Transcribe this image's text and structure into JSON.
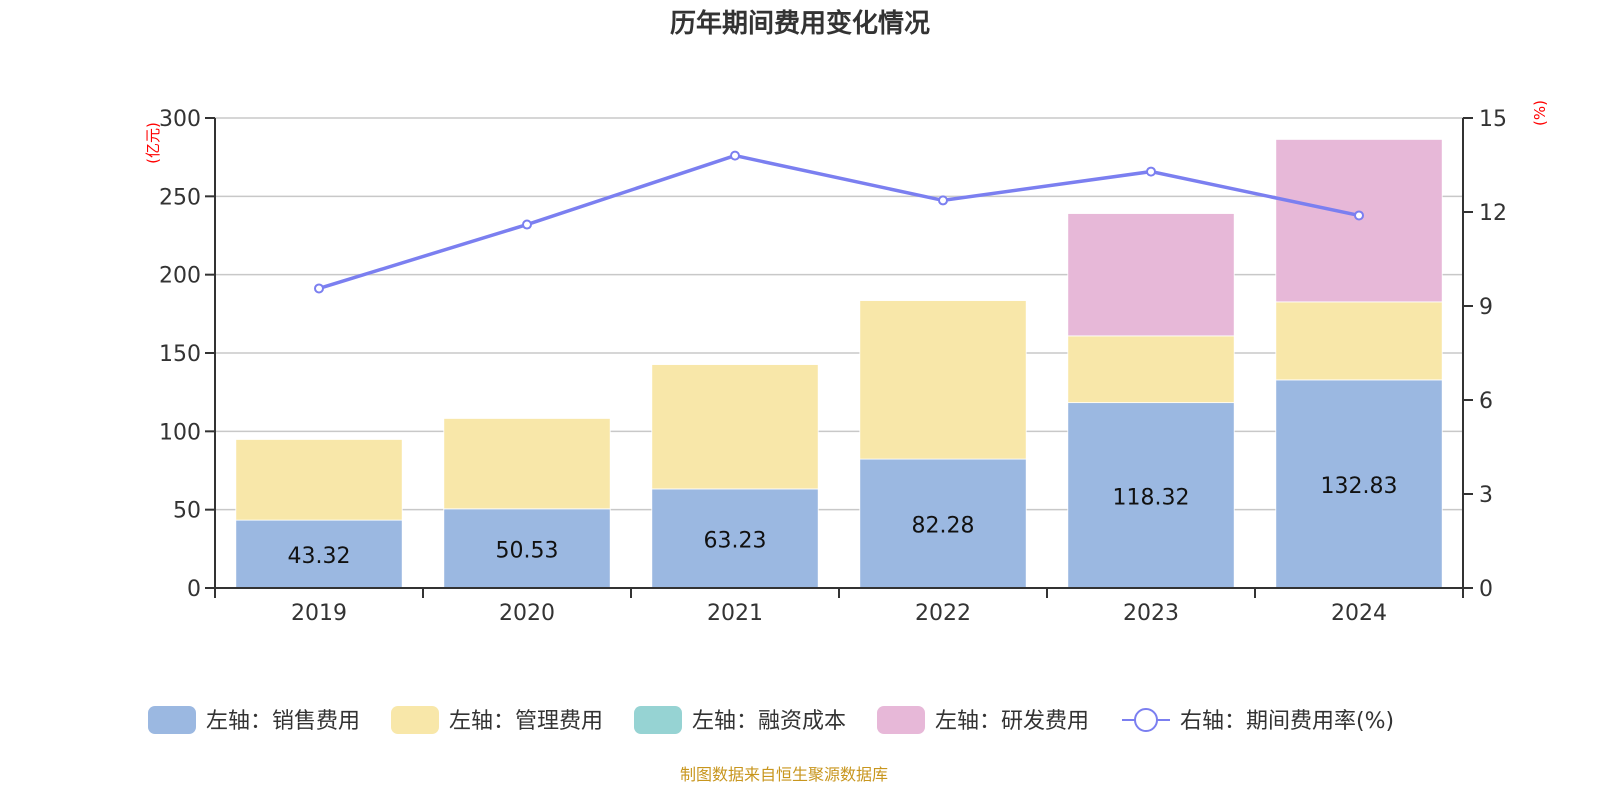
{
  "chart_data": {
    "type": "bar",
    "title": "历年期间费用变化情况",
    "categories": [
      "2019",
      "2020",
      "2021",
      "2022",
      "2023",
      "2024"
    ],
    "left_axis": {
      "unit": "(亿元)",
      "ylim": [
        0,
        300
      ],
      "ticks": [
        0,
        50,
        100,
        150,
        200,
        250,
        300
      ]
    },
    "right_axis": {
      "unit": "(%)",
      "ylim": [
        0,
        15
      ],
      "ticks": [
        0,
        3,
        6,
        9,
        12,
        15
      ]
    },
    "grid": true,
    "stacked": true,
    "series": [
      {
        "name": "左轴：销售费用",
        "axis": "left",
        "type": "bar",
        "color": "#9bb8e1",
        "values": [
          43.32,
          50.53,
          63.23,
          82.28,
          118.32,
          132.83
        ],
        "labels": [
          "43.32",
          "50.53",
          "63.23",
          "82.28",
          "118.32",
          "132.83"
        ]
      },
      {
        "name": "左轴：管理费用",
        "axis": "left",
        "type": "bar",
        "color": "#f8e7a9",
        "values": [
          51.5,
          57.7,
          79.4,
          101.2,
          42.6,
          49.8
        ]
      },
      {
        "name": "左轴：融资成本",
        "axis": "left",
        "type": "bar",
        "color": "#96d3d3",
        "values": [
          0,
          0,
          0,
          0,
          0,
          0
        ]
      },
      {
        "name": "左轴：研发费用",
        "axis": "left",
        "type": "bar",
        "color": "#e7b8d8",
        "values": [
          0,
          0,
          0,
          0,
          78.1,
          103.7
        ]
      },
      {
        "name": "右轴：期间费用率(%)",
        "axis": "right",
        "type": "line",
        "color": "#7b7ff0",
        "values": [
          9.56,
          11.6,
          13.8,
          12.37,
          13.29,
          11.89
        ]
      }
    ],
    "legend_position": "bottom"
  },
  "source_note": "制图数据来自恒生聚源数据库"
}
